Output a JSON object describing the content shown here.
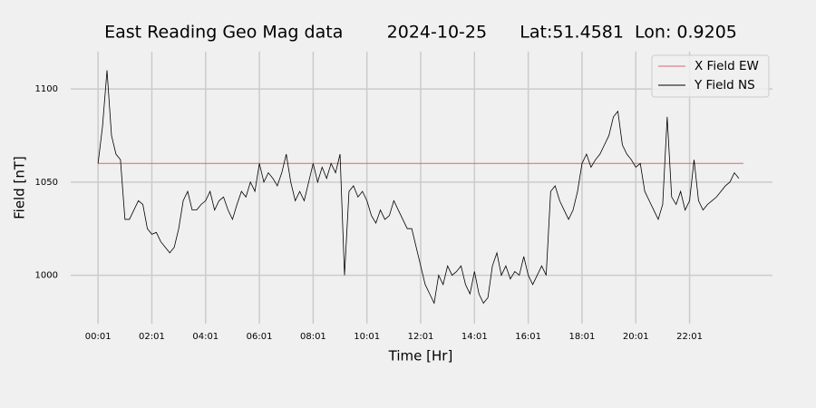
{
  "chart_data": {
    "type": "line",
    "title": "East Reading Geo Mag data        2024-10-25      Lat:51.4581  Lon: 0.9205",
    "xlabel": "Time  [Hr]",
    "ylabel": "Field  [nT]",
    "xlim": [
      -60,
      1506
    ],
    "ylim": [
      974,
      1120
    ],
    "xticks": [
      {
        "value": 1,
        "label": "00:01"
      },
      {
        "value": 121,
        "label": "02:01"
      },
      {
        "value": 241,
        "label": "04:01"
      },
      {
        "value": 361,
        "label": "06:01"
      },
      {
        "value": 481,
        "label": "08:01"
      },
      {
        "value": 601,
        "label": "10:01"
      },
      {
        "value": 721,
        "label": "12:01"
      },
      {
        "value": 841,
        "label": "14:01"
      },
      {
        "value": 961,
        "label": "16:01"
      },
      {
        "value": 1081,
        "label": "18:01"
      },
      {
        "value": 1201,
        "label": "20:01"
      },
      {
        "value": 1321,
        "label": "22:01"
      }
    ],
    "yticks": [
      1000,
      1050,
      1100
    ],
    "grid": true,
    "legend": "upper right",
    "series": [
      {
        "name": "X Field EW",
        "color": "#e06666",
        "x": [
          1,
          1441
        ],
        "values": [
          1060,
          1060
        ]
      },
      {
        "name": "Y Field NS",
        "color": "#000000",
        "x": [
          1,
          11,
          21,
          31,
          41,
          51,
          61,
          71,
          81,
          91,
          101,
          111,
          121,
          131,
          141,
          151,
          161,
          171,
          181,
          191,
          201,
          211,
          221,
          231,
          241,
          251,
          261,
          271,
          281,
          291,
          301,
          311,
          321,
          331,
          341,
          351,
          361,
          371,
          381,
          391,
          401,
          411,
          421,
          431,
          441,
          451,
          461,
          471,
          481,
          491,
          501,
          511,
          521,
          531,
          541,
          551,
          561,
          571,
          581,
          591,
          601,
          611,
          621,
          631,
          641,
          651,
          661,
          671,
          681,
          691,
          701,
          711,
          721,
          731,
          741,
          751,
          761,
          771,
          781,
          791,
          801,
          811,
          821,
          831,
          841,
          851,
          861,
          871,
          881,
          891,
          901,
          911,
          921,
          931,
          941,
          951,
          961,
          971,
          981,
          991,
          1001,
          1011,
          1021,
          1031,
          1041,
          1051,
          1061,
          1071,
          1081,
          1091,
          1101,
          1111,
          1121,
          1131,
          1141,
          1151,
          1161,
          1171,
          1181,
          1191,
          1201,
          1211,
          1221,
          1231,
          1241,
          1251,
          1261,
          1271,
          1281,
          1291,
          1301,
          1311,
          1321,
          1331,
          1341,
          1351,
          1361,
          1371,
          1381,
          1391,
          1401,
          1411,
          1421,
          1431
        ],
        "values": [
          1060,
          1080,
          1110,
          1075,
          1065,
          1062,
          1030,
          1030,
          1035,
          1040,
          1038,
          1025,
          1022,
          1023,
          1018,
          1015,
          1012,
          1015,
          1025,
          1040,
          1045,
          1035,
          1035,
          1038,
          1040,
          1045,
          1035,
          1040,
          1042,
          1035,
          1030,
          1038,
          1045,
          1042,
          1050,
          1045,
          1060,
          1050,
          1055,
          1052,
          1048,
          1055,
          1065,
          1050,
          1040,
          1045,
          1040,
          1050,
          1060,
          1050,
          1058,
          1052,
          1060,
          1055,
          1065,
          1000,
          1045,
          1048,
          1042,
          1045,
          1040,
          1032,
          1028,
          1035,
          1030,
          1032,
          1040,
          1035,
          1030,
          1025,
          1025,
          1015,
          1005,
          995,
          990,
          985,
          1000,
          995,
          1005,
          1000,
          1002,
          1005,
          995,
          990,
          1002,
          990,
          985,
          988,
          1005,
          1012,
          1000,
          1005,
          998,
          1002,
          1000,
          1010,
          1000,
          995,
          1000,
          1005,
          1000,
          1045,
          1048,
          1040,
          1035,
          1030,
          1035,
          1045,
          1060,
          1065,
          1058,
          1062,
          1065,
          1070,
          1075,
          1085,
          1088,
          1070,
          1065,
          1062,
          1058,
          1060,
          1045,
          1040,
          1035,
          1030,
          1038,
          1085,
          1042,
          1038,
          1045,
          1035,
          1040,
          1062,
          1040,
          1035,
          1038,
          1040,
          1042,
          1045,
          1048,
          1050,
          1055,
          1052
        ]
      }
    ]
  }
}
